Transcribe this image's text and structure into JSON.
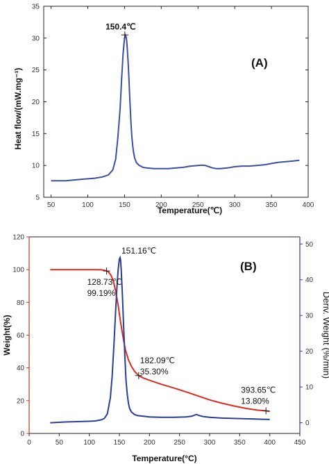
{
  "chart_data": [
    {
      "panel_label": "(A)",
      "type": "line",
      "xlabel": "Temperature(℃)",
      "ylabel": "Heat flow/(mW.mg⁻¹)",
      "xlim": [
        40,
        400
      ],
      "ylim": [
        5,
        35
      ],
      "xticks": [
        50,
        100,
        150,
        200,
        250,
        300,
        350,
        400
      ],
      "yticks": [
        5,
        10,
        15,
        20,
        25,
        30,
        35
      ],
      "line_color": "#3a4fa3",
      "series": [
        {
          "x": [
            50,
            60,
            70,
            80,
            90,
            100,
            110,
            120,
            128,
            134,
            138,
            141,
            144,
            146,
            148,
            150,
            151,
            152,
            153,
            154,
            155,
            156,
            157,
            158,
            159,
            160,
            161,
            162,
            163,
            164,
            165,
            166,
            168,
            170,
            172,
            175,
            180,
            190,
            200,
            210,
            220,
            230,
            240,
            250,
            255,
            260,
            265,
            270,
            275,
            280,
            290,
            300,
            310,
            320,
            330,
            340,
            350,
            360,
            370,
            380,
            388
          ],
          "y": [
            7.6,
            7.6,
            7.6,
            7.7,
            7.8,
            7.9,
            8.0,
            8.2,
            8.5,
            9.3,
            11.0,
            14.5,
            19.0,
            23.5,
            27.5,
            30.0,
            30.5,
            30.3,
            29.5,
            28.0,
            26.0,
            23.5,
            21.0,
            18.5,
            16.3,
            14.5,
            13.2,
            12.3,
            11.6,
            11.1,
            10.8,
            10.5,
            10.2,
            10.0,
            9.9,
            9.7,
            9.6,
            9.5,
            9.5,
            9.5,
            9.6,
            9.7,
            9.9,
            10.0,
            10.05,
            10.0,
            9.8,
            9.6,
            9.5,
            9.5,
            9.6,
            9.8,
            9.9,
            9.9,
            10.0,
            10.1,
            10.3,
            10.5,
            10.6,
            10.7,
            10.8
          ]
        }
      ],
      "annotations": [
        {
          "text": "150.4℃",
          "x": 150.4,
          "y": 30.5
        }
      ]
    },
    {
      "panel_label": "(B)",
      "type": "line",
      "xlabel": "Temperature(°C)",
      "ylabel": "Weight(%)",
      "y2label": "Deriv. Weight (%/min)",
      "xlim": [
        0,
        450
      ],
      "ylim": [
        0,
        120
      ],
      "y2lim": [
        -3,
        52
      ],
      "xticks": [
        0,
        50,
        100,
        150,
        200,
        250,
        300,
        350,
        400,
        450
      ],
      "yticks": [
        0,
        20,
        40,
        60,
        80,
        100,
        120
      ],
      "y2ticks": [
        0,
        10,
        20,
        30,
        40,
        50
      ],
      "axis_color_left": "#cc3322",
      "axis_color_right": "#2a3d9a",
      "series": [
        {
          "color": "#dd2a1a",
          "axis": "left",
          "x": [
            35,
            60,
            80,
            100,
            110,
            120,
            125,
            128.73,
            132,
            136,
            140,
            144,
            148,
            152,
            156,
            160,
            165,
            170,
            175,
            182.09,
            190,
            200,
            220,
            240,
            260,
            280,
            300,
            320,
            340,
            360,
            380,
            393.65,
            400
          ],
          "y": [
            100,
            100,
            100,
            100,
            100,
            99.9,
            99.6,
            99.19,
            98.5,
            96.5,
            93.0,
            86.5,
            78.0,
            68.0,
            59.0,
            51.0,
            45.0,
            41.0,
            38.0,
            35.3,
            33.8,
            32.5,
            30.0,
            27.8,
            25.5,
            23.0,
            20.5,
            18.5,
            16.8,
            15.3,
            14.2,
            13.8,
            13.5
          ]
        },
        {
          "color": "#2a3d9a",
          "axis": "right",
          "x": [
            35,
            60,
            80,
            100,
            110,
            120,
            125,
            130,
            135,
            138,
            141,
            144,
            146,
            148,
            150,
            151.16,
            152,
            153,
            155,
            157,
            159,
            161,
            163,
            165,
            167,
            170,
            175,
            180,
            190,
            200,
            220,
            240,
            260,
            270,
            278,
            283,
            290,
            300,
            320,
            340,
            360,
            380,
            400
          ],
          "y": [
            0.0,
            0.2,
            0.3,
            0.4,
            0.5,
            0.8,
            1.2,
            2.5,
            7.0,
            13.0,
            22.0,
            32.0,
            38.0,
            43.0,
            45.8,
            46.2,
            45.5,
            43.0,
            36.0,
            27.0,
            19.0,
            12.0,
            8.0,
            5.5,
            4.0,
            3.0,
            2.3,
            2.0,
            1.8,
            1.6,
            1.5,
            1.5,
            1.6,
            1.8,
            2.3,
            2.0,
            1.7,
            1.5,
            1.3,
            1.2,
            1.1,
            1.0,
            0.9
          ]
        }
      ],
      "annotations": [
        {
          "text": "151.16℃",
          "x": 151.16,
          "y2": 46.2
        },
        {
          "lines": [
            "128.73℃",
            "99.19%"
          ],
          "x": 128.73,
          "y": 99.19
        },
        {
          "lines": [
            "182.09℃",
            "35.30%"
          ],
          "x": 182.09,
          "y": 35.3
        },
        {
          "lines": [
            "393.65℃",
            "13.80%"
          ],
          "x": 393.65,
          "y": 13.8
        }
      ]
    }
  ]
}
